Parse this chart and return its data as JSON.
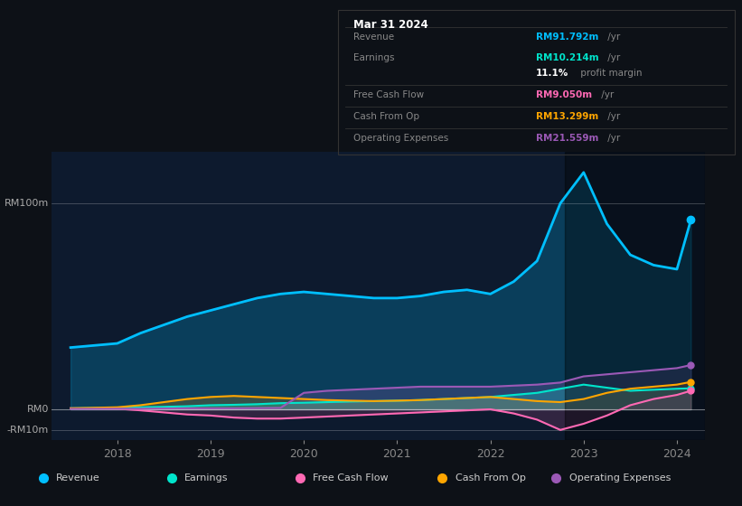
{
  "background_color": "#0d1117",
  "chart_bg_color": "#0d1a2e",
  "title_box_date": "Mar 31 2024",
  "x_years": [
    2017.5,
    2018.0,
    2018.25,
    2018.5,
    2018.75,
    2019.0,
    2019.25,
    2019.5,
    2019.75,
    2020.0,
    2020.25,
    2020.5,
    2020.75,
    2021.0,
    2021.25,
    2021.5,
    2021.75,
    2022.0,
    2022.25,
    2022.5,
    2022.75,
    2023.0,
    2023.25,
    2023.5,
    2023.75,
    2024.0,
    2024.15
  ],
  "revenue": [
    30,
    32,
    37,
    41,
    45,
    48,
    51,
    54,
    56,
    57,
    56,
    55,
    54,
    54,
    55,
    57,
    58,
    56,
    62,
    72,
    100,
    115,
    90,
    75,
    70,
    68,
    92
  ],
  "earnings": [
    0.5,
    0.8,
    1.0,
    1.2,
    1.5,
    2.0,
    2.2,
    2.5,
    3.0,
    3.2,
    3.5,
    3.8,
    4.0,
    4.2,
    4.5,
    5.0,
    5.5,
    6.0,
    7.0,
    8.0,
    10.0,
    12.0,
    10.5,
    9.0,
    9.5,
    10.0,
    10.2
  ],
  "free_cash_flow": [
    0.5,
    0.3,
    -0.5,
    -1.5,
    -2.5,
    -3.0,
    -4.0,
    -4.5,
    -4.5,
    -4.0,
    -3.5,
    -3.0,
    -2.5,
    -2.0,
    -1.5,
    -1.0,
    -0.5,
    0.0,
    -2.0,
    -5.0,
    -10.0,
    -7.0,
    -3.0,
    2.0,
    5.0,
    7.0,
    9.0
  ],
  "cash_from_op": [
    0.5,
    1.0,
    2.0,
    3.5,
    5.0,
    6.0,
    6.5,
    6.0,
    5.5,
    5.0,
    4.5,
    4.2,
    4.0,
    4.2,
    4.5,
    5.0,
    5.5,
    6.0,
    5.0,
    4.0,
    3.5,
    5.0,
    8.0,
    10.0,
    11.0,
    12.0,
    13.3
  ],
  "op_expenses": [
    0.2,
    0.3,
    0.3,
    0.4,
    0.5,
    0.5,
    0.5,
    0.6,
    0.7,
    8.0,
    9.0,
    9.5,
    10.0,
    10.5,
    11.0,
    11.0,
    11.0,
    11.0,
    11.5,
    12.0,
    13.0,
    16.0,
    17.0,
    18.0,
    19.0,
    20.0,
    21.5
  ],
  "xlim": [
    2017.3,
    2024.3
  ],
  "ylim": [
    -15,
    125
  ],
  "yticks_labels": [
    "RM100m",
    "RM0",
    "-RM10m"
  ],
  "yticks_values": [
    100,
    0,
    -10
  ],
  "xtick_labels": [
    "2018",
    "2019",
    "2020",
    "2021",
    "2022",
    "2023",
    "2024"
  ],
  "xtick_values": [
    2018,
    2019,
    2020,
    2021,
    2022,
    2023,
    2024
  ],
  "highlight_x_start": 2022.8,
  "highlight_x_end": 2024.3,
  "revenue_color": "#00bfff",
  "earnings_color": "#00e5cc",
  "fcf_color": "#ff69b4",
  "cashop_color": "#ffa500",
  "opex_color": "#9b59b6",
  "info_rows": [
    {
      "label": "Revenue",
      "value": "RM91.792m",
      "value_color": "#00bfff",
      "suffix": " /yr",
      "show_sep": false
    },
    {
      "label": "Earnings",
      "value": "RM10.214m",
      "value_color": "#00e5cc",
      "suffix": " /yr",
      "show_sep": false
    },
    {
      "label": "",
      "value": "11.1%",
      "value_color": "#ffffff",
      "suffix": " profit margin",
      "show_sep": false
    },
    {
      "label": "Free Cash Flow",
      "value": "RM9.050m",
      "value_color": "#ff69b4",
      "suffix": " /yr",
      "show_sep": true
    },
    {
      "label": "Cash From Op",
      "value": "RM13.299m",
      "value_color": "#ffa500",
      "suffix": " /yr",
      "show_sep": true
    },
    {
      "label": "Operating Expenses",
      "value": "RM21.559m",
      "value_color": "#9b59b6",
      "suffix": " /yr",
      "show_sep": true
    }
  ],
  "legend_items": [
    {
      "label": "Revenue",
      "color": "#00bfff"
    },
    {
      "label": "Earnings",
      "color": "#00e5cc"
    },
    {
      "label": "Free Cash Flow",
      "color": "#ff69b4"
    },
    {
      "label": "Cash From Op",
      "color": "#ffa500"
    },
    {
      "label": "Operating Expenses",
      "color": "#9b59b6"
    }
  ]
}
